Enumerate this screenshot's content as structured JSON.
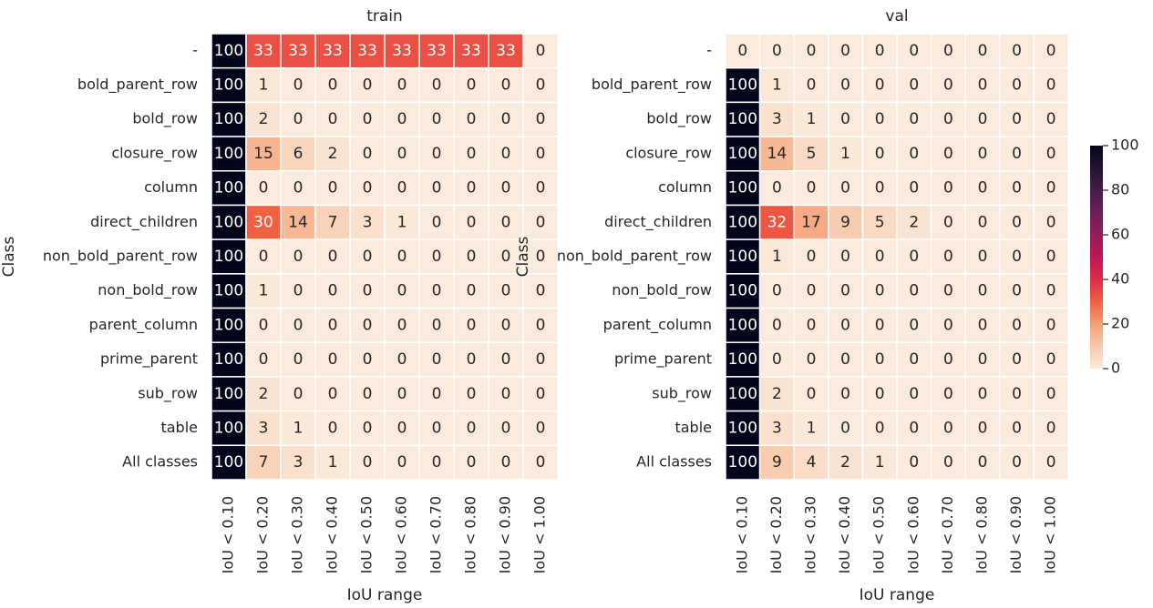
{
  "chart_data": [
    {
      "type": "heatmap",
      "title": "train",
      "xlabel": "IoU range",
      "ylabel": "Class",
      "x_labels": [
        "IoU < 0.10",
        "IoU < 0.20",
        "IoU < 0.30",
        "IoU < 0.40",
        "IoU < 0.50",
        "IoU < 0.60",
        "IoU < 0.70",
        "IoU < 0.80",
        "IoU < 0.90",
        "IoU < 1.00"
      ],
      "y_labels": [
        "-",
        "bold_parent_row",
        "bold_row",
        "closure_row",
        "column",
        "direct_children",
        "non_bold_parent_row",
        "non_bold_row",
        "parent_column",
        "prime_parent",
        "sub_row",
        "table",
        "All classes"
      ],
      "values": [
        [
          100,
          33,
          33,
          33,
          33,
          33,
          33,
          33,
          33,
          0
        ],
        [
          100,
          1,
          0,
          0,
          0,
          0,
          0,
          0,
          0,
          0
        ],
        [
          100,
          2,
          0,
          0,
          0,
          0,
          0,
          0,
          0,
          0
        ],
        [
          100,
          15,
          6,
          2,
          0,
          0,
          0,
          0,
          0,
          0
        ],
        [
          100,
          0,
          0,
          0,
          0,
          0,
          0,
          0,
          0,
          0
        ],
        [
          100,
          30,
          14,
          7,
          3,
          1,
          0,
          0,
          0,
          0
        ],
        [
          100,
          0,
          0,
          0,
          0,
          0,
          0,
          0,
          0,
          0
        ],
        [
          100,
          1,
          0,
          0,
          0,
          0,
          0,
          0,
          0,
          0
        ],
        [
          100,
          0,
          0,
          0,
          0,
          0,
          0,
          0,
          0,
          0
        ],
        [
          100,
          0,
          0,
          0,
          0,
          0,
          0,
          0,
          0,
          0
        ],
        [
          100,
          2,
          0,
          0,
          0,
          0,
          0,
          0,
          0,
          0
        ],
        [
          100,
          3,
          1,
          0,
          0,
          0,
          0,
          0,
          0,
          0
        ],
        [
          100,
          7,
          3,
          1,
          0,
          0,
          0,
          0,
          0,
          0
        ]
      ],
      "colormap": "rocket_r",
      "zlim": [
        0,
        100
      ]
    },
    {
      "type": "heatmap",
      "title": "val",
      "xlabel": "IoU range",
      "ylabel": "Class",
      "x_labels": [
        "IoU < 0.10",
        "IoU < 0.20",
        "IoU < 0.30",
        "IoU < 0.40",
        "IoU < 0.50",
        "IoU < 0.60",
        "IoU < 0.70",
        "IoU < 0.80",
        "IoU < 0.90",
        "IoU < 1.00"
      ],
      "y_labels": [
        "-",
        "bold_parent_row",
        "bold_row",
        "closure_row",
        "column",
        "direct_children",
        "non_bold_parent_row",
        "non_bold_row",
        "parent_column",
        "prime_parent",
        "sub_row",
        "table",
        "All classes"
      ],
      "values": [
        [
          0,
          0,
          0,
          0,
          0,
          0,
          0,
          0,
          0,
          0
        ],
        [
          100,
          1,
          0,
          0,
          0,
          0,
          0,
          0,
          0,
          0
        ],
        [
          100,
          3,
          1,
          0,
          0,
          0,
          0,
          0,
          0,
          0
        ],
        [
          100,
          14,
          5,
          1,
          0,
          0,
          0,
          0,
          0,
          0
        ],
        [
          100,
          0,
          0,
          0,
          0,
          0,
          0,
          0,
          0,
          0
        ],
        [
          100,
          32,
          17,
          9,
          5,
          2,
          0,
          0,
          0,
          0
        ],
        [
          100,
          1,
          0,
          0,
          0,
          0,
          0,
          0,
          0,
          0
        ],
        [
          100,
          0,
          0,
          0,
          0,
          0,
          0,
          0,
          0,
          0
        ],
        [
          100,
          0,
          0,
          0,
          0,
          0,
          0,
          0,
          0,
          0
        ],
        [
          100,
          0,
          0,
          0,
          0,
          0,
          0,
          0,
          0,
          0
        ],
        [
          100,
          2,
          0,
          0,
          0,
          0,
          0,
          0,
          0,
          0
        ],
        [
          100,
          3,
          1,
          0,
          0,
          0,
          0,
          0,
          0,
          0
        ],
        [
          100,
          9,
          4,
          2,
          1,
          0,
          0,
          0,
          0,
          0
        ]
      ],
      "colormap": "rocket_r",
      "zlim": [
        0,
        100
      ],
      "colorbar": true,
      "zticks": [
        0,
        20,
        40,
        60,
        80,
        100
      ]
    }
  ]
}
